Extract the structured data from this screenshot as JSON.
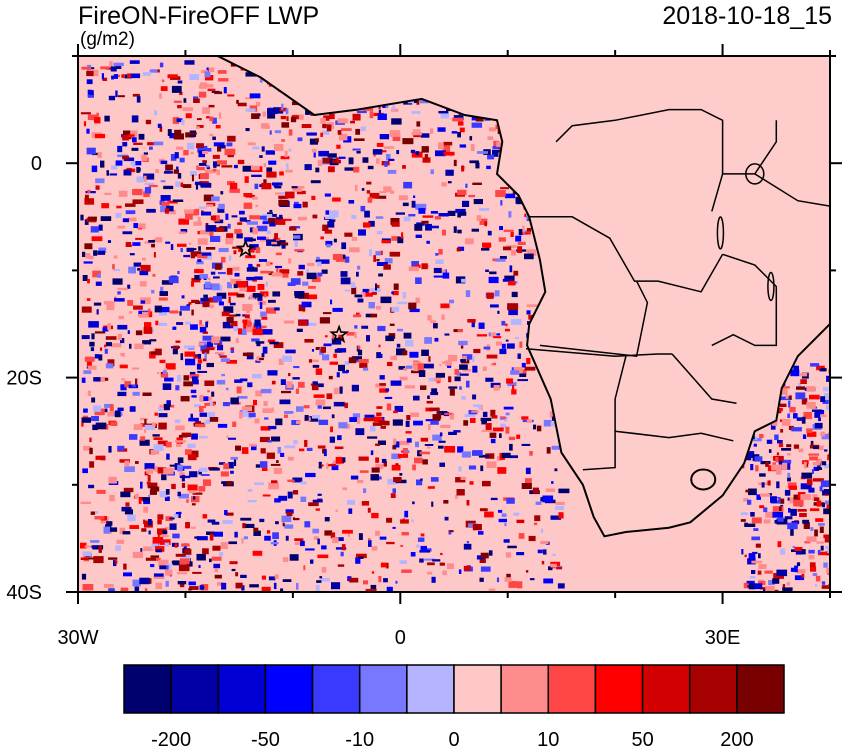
{
  "header": {
    "title": "FireON-FireOFF LWP",
    "units": "(g/m2)",
    "datetime": "2018-10-18_15"
  },
  "map": {
    "type": "filled-contour-map",
    "lon_range": [
      -30,
      40
    ],
    "lat_range": [
      -40,
      10
    ],
    "xticks": [
      {
        "lon": -30,
        "label": "30W"
      },
      {
        "lon": 0,
        "label": "0"
      },
      {
        "lon": 30,
        "label": "30E"
      }
    ],
    "yticks": [
      {
        "lat": 0,
        "label": "0"
      },
      {
        "lat": -20,
        "label": "20S"
      },
      {
        "lat": -40,
        "label": "40S"
      }
    ],
    "background_color": "#ffc8c8",
    "land_color": "#ffcccc",
    "coastline_color": "#000000",
    "markers": [
      {
        "lon": -14.4,
        "lat": -8.0,
        "symbol": "star"
      },
      {
        "lon": -5.7,
        "lat": -16.0,
        "symbol": "star"
      }
    ]
  },
  "colorbar": {
    "colors": [
      "#00006e",
      "#0000a4",
      "#0000d4",
      "#0000ff",
      "#3a3aff",
      "#7878ff",
      "#b4b4ff",
      "#ffc8c8",
      "#ff8c8c",
      "#ff4646",
      "#ff0000",
      "#d20000",
      "#a60000",
      "#780000"
    ],
    "labels": [
      "-200",
      "-50",
      "-10",
      "0",
      "10",
      "50",
      "200"
    ]
  }
}
